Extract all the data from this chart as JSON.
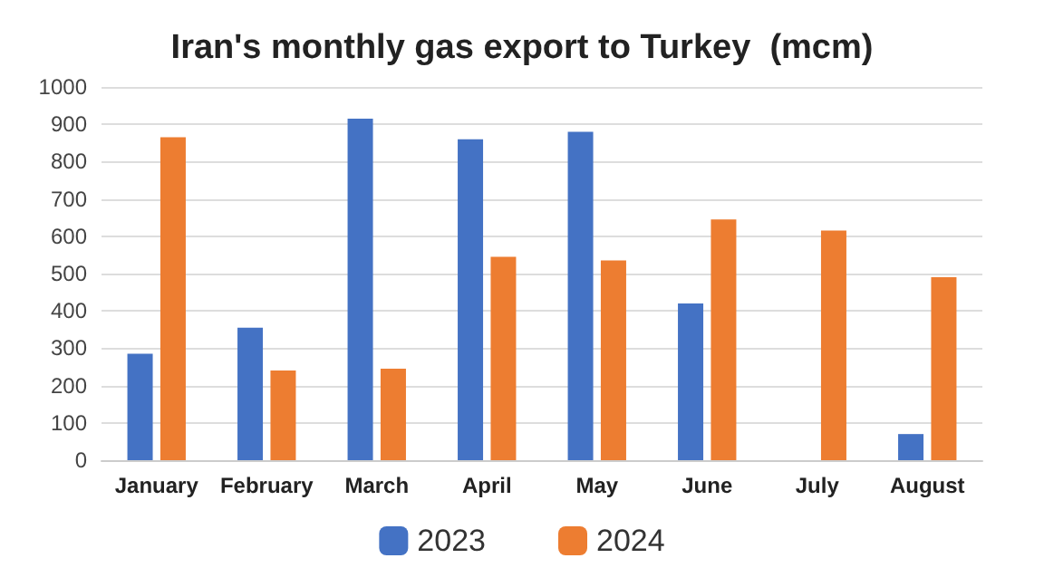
{
  "chart_data": {
    "type": "bar",
    "title": "Iran's monthly gas export to Turkey  (mcm)",
    "categories": [
      "January",
      "February",
      "March",
      "April",
      "May",
      "June",
      "July",
      "August"
    ],
    "series": [
      {
        "name": "2023",
        "color": "#4472c4",
        "values": [
          285,
          355,
          915,
          860,
          880,
          420,
          null,
          70
        ]
      },
      {
        "name": "2024",
        "color": "#ed7d31",
        "values": [
          865,
          240,
          245,
          545,
          535,
          645,
          615,
          490
        ]
      }
    ],
    "ylim": [
      0,
      1000
    ],
    "yticks": [
      0,
      100,
      200,
      300,
      400,
      500,
      600,
      700,
      800,
      900,
      1000
    ],
    "grid": "y",
    "legend": "bottom"
  }
}
